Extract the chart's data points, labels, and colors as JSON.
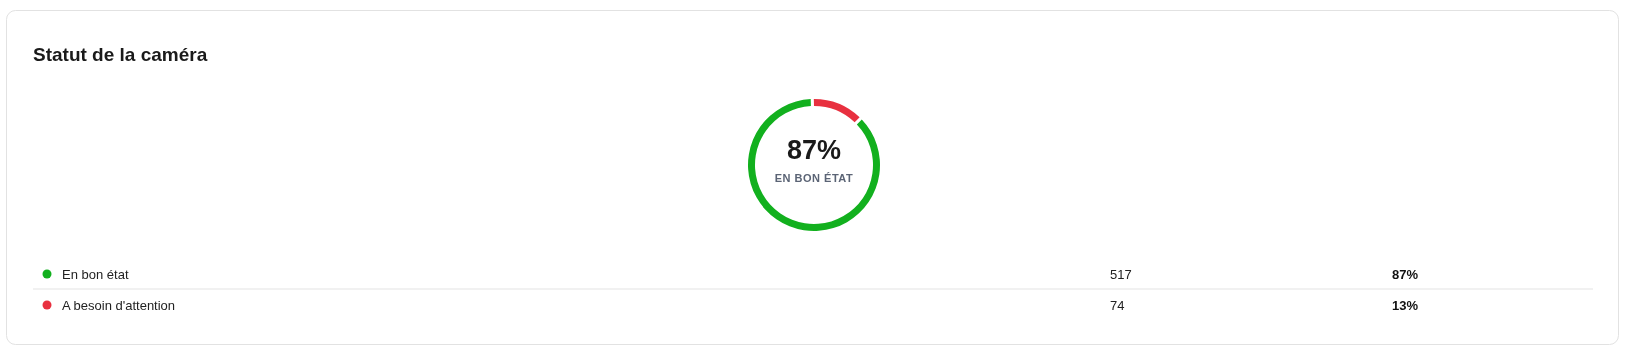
{
  "chart_data": {
    "type": "donut",
    "title": "Statut de la caméra",
    "categories": [
      "En bon état",
      "A besoin d'attention"
    ],
    "values": [
      517,
      74
    ],
    "colors": [
      "#12b01e",
      "#e8303f"
    ],
    "data_labels": true,
    "legend": "bottom",
    "annotations": [
      "87%",
      "EN BON ÉTAT",
      "87%",
      "13%"
    ]
  }
}
